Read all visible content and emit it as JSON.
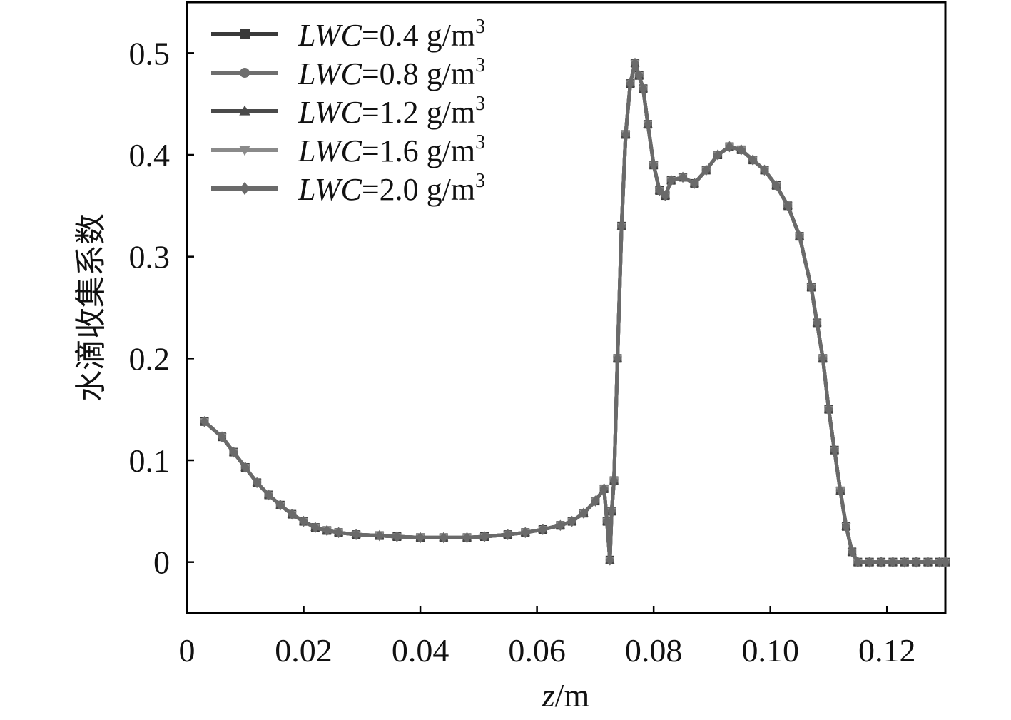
{
  "chart_data": {
    "type": "line",
    "title": "",
    "xlabel": {
      "var": "z",
      "unit": "/m"
    },
    "ylabel": "水滴收集系数",
    "xlim": [
      0,
      0.13
    ],
    "ylim": [
      -0.05,
      0.55
    ],
    "x_ticks": [
      0,
      0.02,
      0.04,
      0.06,
      0.08,
      0.1,
      0.12
    ],
    "x_tick_labels": [
      "0",
      "0.02",
      "0.04",
      "0.06",
      "0.08",
      "0.10",
      "0.12"
    ],
    "y_ticks": [
      0,
      0.1,
      0.2,
      0.3,
      0.4,
      0.5
    ],
    "y_tick_labels": [
      "0",
      "0.1",
      "0.2",
      "0.3",
      "0.4",
      "0.5"
    ],
    "grid": false,
    "legend_position": "top-left",
    "series": [
      {
        "legend_var": "LWC",
        "legend_value": "=0.4 g/m",
        "legend_sup": "3",
        "marker": "square",
        "color": "#3a3a3a"
      },
      {
        "legend_var": "LWC",
        "legend_value": "=0.8 g/m",
        "legend_sup": "3",
        "marker": "circle",
        "color": "#6e6e6e"
      },
      {
        "legend_var": "LWC",
        "legend_value": "=1.2 g/m",
        "legend_sup": "3",
        "marker": "triangle-up",
        "color": "#4a4a4a"
      },
      {
        "legend_var": "LWC",
        "legend_value": "=1.6 g/m",
        "legend_sup": "3",
        "marker": "triangle-down",
        "color": "#8a8a8a"
      },
      {
        "legend_var": "LWC",
        "legend_value": "=2.0 g/m",
        "legend_sup": "3",
        "marker": "diamond",
        "color": "#6a6a6a"
      }
    ],
    "curve": {
      "note_shared": true,
      "x": [
        0.003,
        0.006,
        0.008,
        0.01,
        0.012,
        0.014,
        0.016,
        0.018,
        0.02,
        0.022,
        0.024,
        0.026,
        0.029,
        0.033,
        0.036,
        0.04,
        0.044,
        0.048,
        0.051,
        0.055,
        0.058,
        0.061,
        0.064,
        0.066,
        0.068,
        0.07,
        0.0715,
        0.072,
        0.0725,
        0.0728,
        0.0732,
        0.0738,
        0.0745,
        0.0752,
        0.076,
        0.0768,
        0.0775,
        0.0782,
        0.079,
        0.08,
        0.081,
        0.082,
        0.083,
        0.085,
        0.087,
        0.089,
        0.091,
        0.093,
        0.095,
        0.097,
        0.099,
        0.101,
        0.103,
        0.105,
        0.107,
        0.108,
        0.109,
        0.11,
        0.111,
        0.112,
        0.113,
        0.114,
        0.115,
        0.117,
        0.119,
        0.121,
        0.123,
        0.125,
        0.127,
        0.129,
        0.13
      ],
      "y": [
        0.138,
        0.123,
        0.108,
        0.093,
        0.078,
        0.066,
        0.056,
        0.047,
        0.04,
        0.034,
        0.031,
        0.029,
        0.027,
        0.026,
        0.025,
        0.024,
        0.024,
        0.024,
        0.025,
        0.027,
        0.029,
        0.032,
        0.036,
        0.04,
        0.048,
        0.06,
        0.072,
        0.04,
        0.002,
        0.05,
        0.08,
        0.2,
        0.33,
        0.42,
        0.47,
        0.49,
        0.478,
        0.465,
        0.43,
        0.39,
        0.365,
        0.36,
        0.375,
        0.378,
        0.372,
        0.385,
        0.4,
        0.408,
        0.405,
        0.395,
        0.385,
        0.37,
        0.35,
        0.32,
        0.27,
        0.235,
        0.2,
        0.15,
        0.11,
        0.07,
        0.035,
        0.01,
        0.0,
        0.0,
        0.0,
        0.0,
        0.0,
        0.0,
        0.0,
        0.0,
        0.0
      ]
    }
  }
}
